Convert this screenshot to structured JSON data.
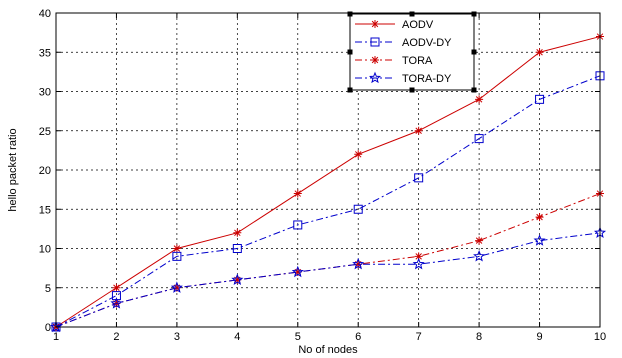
{
  "chart_data": {
    "type": "line",
    "title": "",
    "xlabel": "No of nodes",
    "ylabel": "hello packet ratio",
    "x": [
      1,
      2,
      3,
      4,
      5,
      6,
      7,
      8,
      9,
      10
    ],
    "xlim": [
      1,
      10
    ],
    "ylim": [
      0,
      40
    ],
    "xticks": [
      1,
      2,
      3,
      4,
      5,
      6,
      7,
      8,
      9,
      10
    ],
    "yticks": [
      0,
      5,
      10,
      15,
      20,
      25,
      30,
      35,
      40
    ],
    "grid": true,
    "legend_position": "top-center",
    "series": [
      {
        "name": "AODV",
        "values": [
          0,
          5,
          10,
          12,
          17,
          22,
          25,
          29,
          35,
          37
        ],
        "color": "#cc0000",
        "line": "solid",
        "marker": "star"
      },
      {
        "name": "AODV-DY",
        "values": [
          0,
          4,
          9,
          10,
          13,
          15,
          19,
          24,
          29,
          32
        ],
        "color": "#0000cc",
        "line": "dashdot",
        "marker": "square"
      },
      {
        "name": "TORA",
        "values": [
          0,
          3,
          5,
          6,
          7,
          8,
          9,
          11,
          14,
          17
        ],
        "color": "#cc0000",
        "line": "dashdot",
        "marker": "star"
      },
      {
        "name": "TORA-DY",
        "values": [
          0,
          3,
          5,
          6,
          7,
          8,
          8,
          9,
          11,
          12
        ],
        "color": "#0000cc",
        "line": "dashdot",
        "marker": "pentagram"
      }
    ]
  }
}
